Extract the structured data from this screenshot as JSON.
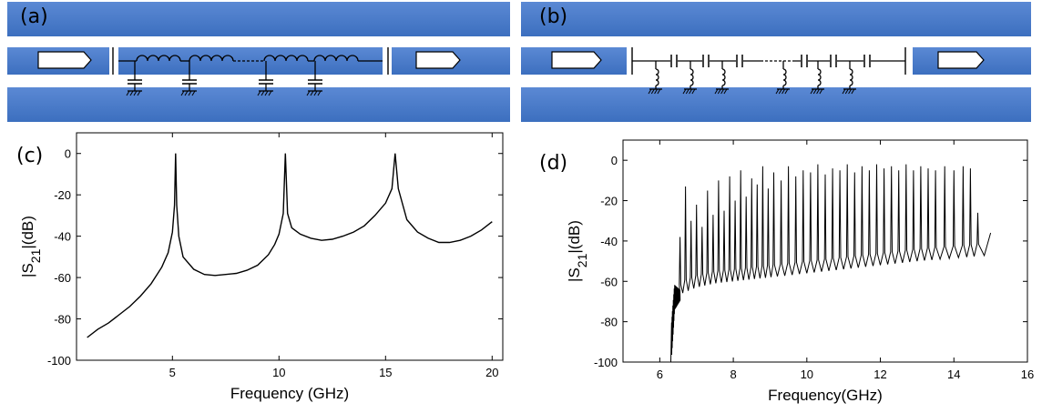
{
  "colors": {
    "band": "#3c6fbf",
    "band_light": "#5b89d4",
    "wire": "#000000",
    "port_fill": "#ffffff",
    "curve": "#000000"
  },
  "panel_a": {
    "label": "(a)"
  },
  "panel_b": {
    "label": "(b)"
  },
  "panel_c": {
    "label": "(c)"
  },
  "panel_d": {
    "label": "(d)"
  },
  "chart_data": [
    {
      "panel": "(c)",
      "type": "line",
      "xlabel": "Frequency (GHz)",
      "ylabel_main": "|S",
      "ylabel_sub": "21",
      "ylabel_tail": "|(dB)",
      "xlim": [
        0.5,
        20.5
      ],
      "ylim": [
        -100,
        10
      ],
      "xticks": [
        5,
        10,
        15,
        20
      ],
      "yticks": [
        0,
        -20,
        -40,
        -60,
        -80,
        -100
      ],
      "resonances_ghz": [
        5.15,
        10.3,
        15.45
      ],
      "series": [
        {
          "x": [
            1.0,
            1.5,
            2.0,
            2.5,
            3.0,
            3.5,
            4.0,
            4.5,
            4.8,
            5.0,
            5.1,
            5.15,
            5.2,
            5.3,
            5.5,
            6.0,
            6.5,
            7.0,
            7.5,
            8.0,
            8.5,
            9.0,
            9.5,
            9.8,
            10.0,
            10.2,
            10.3,
            10.4,
            10.6,
            11.0,
            11.5,
            12.0,
            12.5,
            13.0,
            13.5,
            14.0,
            14.5,
            15.0,
            15.3,
            15.45,
            15.6,
            16.0,
            16.5,
            17.0,
            17.5,
            18.0,
            18.5,
            19.0,
            19.5,
            20.0
          ],
          "y": [
            -89,
            -85,
            -82,
            -78,
            -74,
            -69,
            -63,
            -55,
            -48,
            -38,
            -25,
            0,
            -25,
            -40,
            -50,
            -56,
            -58.5,
            -59,
            -58.5,
            -58,
            -56.5,
            -54,
            -49,
            -44,
            -39,
            -29,
            0,
            -29,
            -36,
            -39,
            -41,
            -42,
            -41.5,
            -40,
            -38,
            -35,
            -30,
            -24,
            -17,
            0,
            -17,
            -32,
            -38,
            -41,
            -43,
            -43,
            -42,
            -40,
            -37,
            -33
          ]
        }
      ]
    },
    {
      "panel": "(d)",
      "type": "line",
      "xlabel": "Frequency(GHz)",
      "ylabel_main": "|S",
      "ylabel_sub": "21",
      "ylabel_tail": "|(dB)",
      "xlim": [
        5,
        16
      ],
      "ylim": [
        -100,
        10
      ],
      "xticks": [
        6,
        8,
        10,
        12,
        14,
        16
      ],
      "yticks": [
        0,
        -20,
        -40,
        -60,
        -80,
        -100
      ],
      "baseline": {
        "x": [
          6.3,
          6.4,
          6.6,
          7.0,
          7.5,
          8.0,
          9.0,
          10.0,
          11.0,
          12.0,
          13.0,
          14.0,
          15.0
        ],
        "y": [
          -100,
          -72,
          -66,
          -63,
          -61,
          -60,
          -58,
          -56,
          -54,
          -52,
          -50,
          -48.5,
          -47
        ]
      },
      "peaks": {
        "x": [
          6.55,
          6.7,
          6.85,
          7.0,
          7.15,
          7.3,
          7.45,
          7.6,
          7.75,
          7.9,
          8.05,
          8.2,
          8.35,
          8.5,
          8.65,
          8.8,
          8.95,
          9.1,
          9.3,
          9.5,
          9.7,
          9.9,
          10.1,
          10.3,
          10.5,
          10.7,
          10.9,
          11.1,
          11.3,
          11.5,
          11.7,
          11.9,
          12.1,
          12.3,
          12.5,
          12.7,
          12.9,
          13.1,
          13.3,
          13.5,
          13.75,
          14.0,
          14.25,
          14.45,
          14.65
        ],
        "y": [
          -38,
          -13,
          -30,
          -22,
          -33,
          -15,
          -27,
          -10,
          -25,
          -8,
          -20,
          -5,
          -18,
          -9,
          -12,
          -3,
          -14,
          -6,
          -10,
          -3,
          -8,
          -5,
          -6,
          -2,
          -7,
          -4,
          -5,
          -2,
          -6,
          -3,
          -5,
          -2,
          -4,
          -3,
          -5,
          -2,
          -5,
          -3,
          -4,
          -5,
          -3,
          -5,
          -3,
          -4,
          -26
        ]
      },
      "end": {
        "x": 15.0,
        "y": -36
      }
    }
  ]
}
